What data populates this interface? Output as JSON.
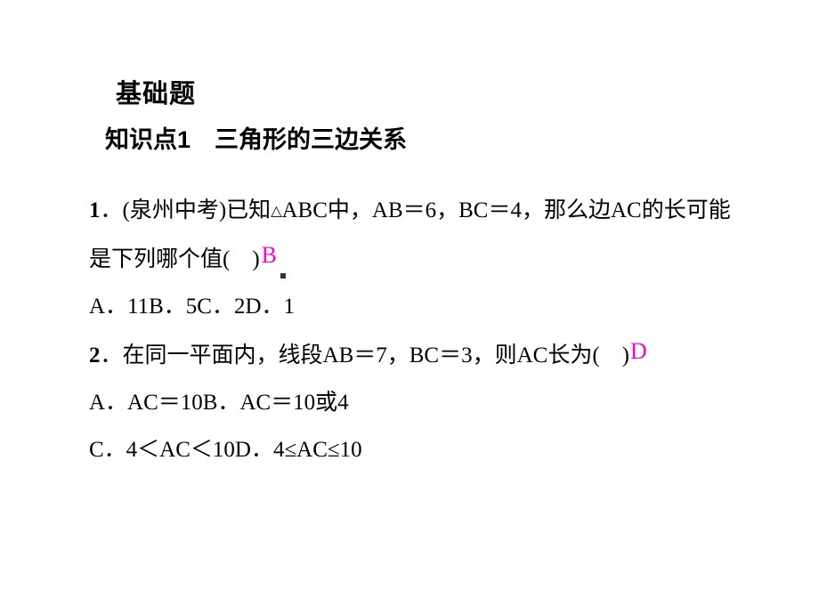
{
  "heading": {
    "main": "基础题",
    "sub_prefix": "知识点1",
    "sub_spacer": "　",
    "sub_rest": "三角形的三边关系"
  },
  "q1": {
    "num": "1",
    "dot": "．",
    "source": "(泉州中考)",
    "pre": "已知",
    "triangle": "△",
    "after_tri": "ABC中，AB＝6，BC＝4，那么边AC的长可能是下列哪个值(",
    "ws": "　",
    "close": ")",
    "answer": "B",
    "options": "A．11B．5C．2D．1"
  },
  "q2": {
    "num": "2",
    "dot": "．",
    "text": "在同一平面内，线段AB＝7，BC＝3，则AC长为(",
    "ws": "　",
    "close": ")",
    "answer": "D",
    "options_ab": "A．AC＝10B．AC＝10或4",
    "options_cd": "C．4＜AC＜10D．4≤AC≤10"
  },
  "colors": {
    "text": "#000000",
    "answer": "#ff00d4",
    "background": "#ffffff"
  },
  "typography": {
    "heading_main_fontsize": 29,
    "heading_sub_fontsize": 27,
    "body_fontsize": 25,
    "line_height": 2.12,
    "heading_family": "SimHei",
    "body_family": "SimSun"
  }
}
